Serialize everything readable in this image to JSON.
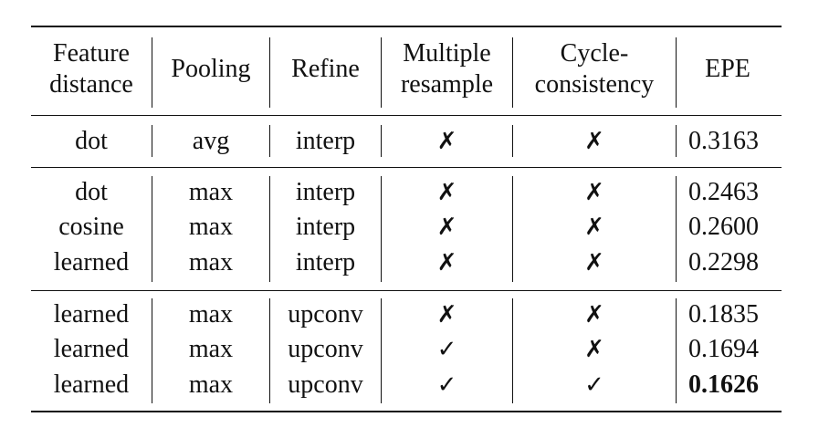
{
  "headers": [
    "Feature distance",
    "Pooling",
    "Refine",
    "Multiple resample",
    "Cycle-consistency",
    "EPE"
  ],
  "header_lines": [
    [
      "Feature",
      "distance"
    ],
    [
      "Pooling"
    ],
    [
      "Refine"
    ],
    [
      "Multiple",
      "resample"
    ],
    [
      "Cycle-",
      "consistency"
    ],
    [
      "EPE"
    ]
  ],
  "groups": [
    {
      "rows": [
        {
          "feature": "dot",
          "pooling": "avg",
          "refine": "interp",
          "multiple": "✗",
          "cycle": "✗",
          "epe": "0.3163",
          "bold": false
        }
      ]
    },
    {
      "rows": [
        {
          "feature": "dot",
          "pooling": "max",
          "refine": "interp",
          "multiple": "✗",
          "cycle": "✗",
          "epe": "0.2463",
          "bold": false
        },
        {
          "feature": "cosine",
          "pooling": "max",
          "refine": "interp",
          "multiple": "✗",
          "cycle": "✗",
          "epe": "0.2600",
          "bold": false
        },
        {
          "feature": "learned",
          "pooling": "max",
          "refine": "interp",
          "multiple": "✗",
          "cycle": "✗",
          "epe": "0.2298",
          "bold": false
        }
      ]
    },
    {
      "rows": [
        {
          "feature": "learned",
          "pooling": "max",
          "refine": "upconv",
          "multiple": "✗",
          "cycle": "✗",
          "epe": "0.1835",
          "bold": false
        },
        {
          "feature": "learned",
          "pooling": "max",
          "refine": "upconv",
          "multiple": "✓",
          "cycle": "✗",
          "epe": "0.1694",
          "bold": false
        },
        {
          "feature": "learned",
          "pooling": "max",
          "refine": "upconv",
          "multiple": "✓",
          "cycle": "✓",
          "epe": "0.1626",
          "bold": true
        }
      ]
    }
  ]
}
